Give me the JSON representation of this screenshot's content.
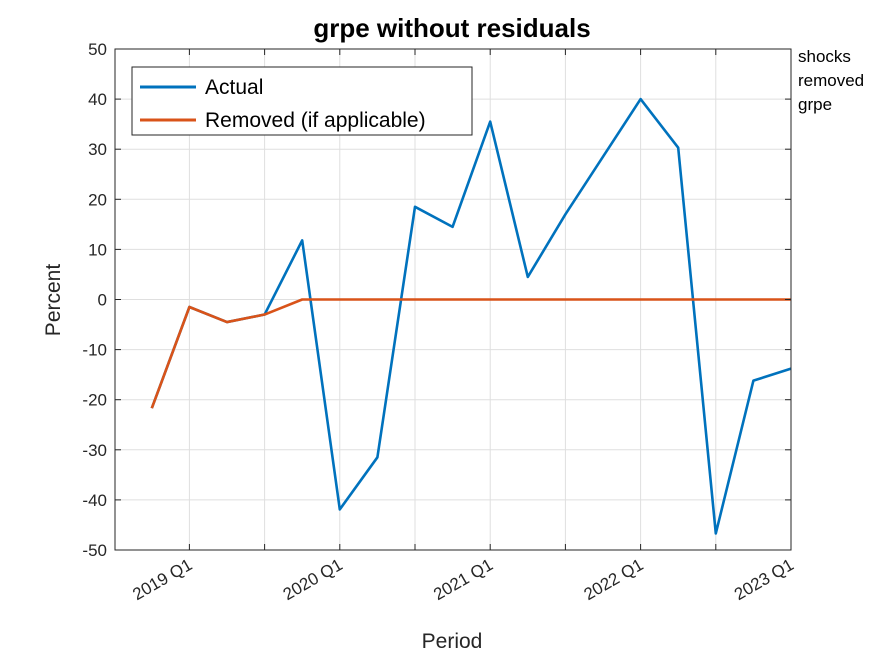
{
  "chart_data": {
    "type": "line",
    "title": "grpe without residuals",
    "xlabel": "Period",
    "ylabel": "Percent",
    "ylim": [
      -50,
      50
    ],
    "yticks": [
      -50,
      -40,
      -30,
      -20,
      -10,
      0,
      10,
      20,
      30,
      40,
      50
    ],
    "grid": true,
    "legend_position": "top-left",
    "x": [
      "2018 Q4",
      "2019 Q1",
      "2019 Q2",
      "2019 Q3",
      "2019 Q4",
      "2020 Q1",
      "2020 Q2",
      "2020 Q3",
      "2020 Q4",
      "2021 Q1",
      "2021 Q2",
      "2021 Q3",
      "2021 Q4",
      "2022 Q1",
      "2022 Q2",
      "2022 Q3",
      "2022 Q4",
      "2023 Q1"
    ],
    "xtick_labels": [
      "2019 Q1",
      "2020 Q1",
      "2021 Q1",
      "2022 Q1",
      "2023 Q1"
    ],
    "series": [
      {
        "name": "Actual",
        "color": "#0072BD",
        "values": [
          -21.7,
          -1.5,
          -4.5,
          -3.0,
          11.8,
          -41.9,
          -31.5,
          18.5,
          14.5,
          35.5,
          4.5,
          17.0,
          28.5,
          40.0,
          30.3,
          -46.7,
          -16.2,
          -13.8
        ]
      },
      {
        "name": "Removed (if applicable)",
        "color": "#D95319",
        "values": [
          -21.7,
          -1.5,
          -4.5,
          -3.0,
          0,
          0,
          0,
          0,
          0,
          0,
          0,
          0,
          0,
          0,
          0,
          0,
          0,
          0
        ]
      }
    ],
    "side_note": [
      "shocks",
      "removed",
      "grpe"
    ]
  }
}
